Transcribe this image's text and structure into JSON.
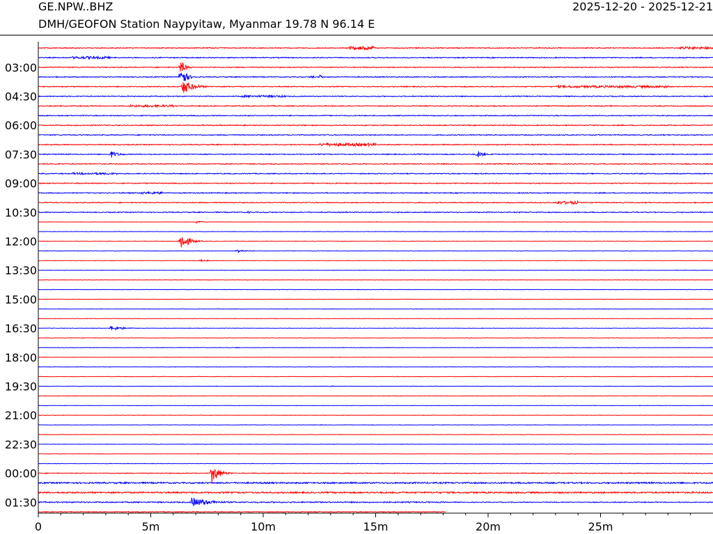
{
  "header": {
    "station_code": "GE.NPW..BHZ",
    "station_desc": "DMH/GEOFON Station Naypyitaw, Myanmar  19.78 N 96.14 E",
    "date_range": "2025-12-20 - 2025-12-21"
  },
  "colors": {
    "trace_a": "#ff0000",
    "trace_b": "#0000ff",
    "axis": "#000000"
  },
  "chart_data": {
    "type": "line",
    "title": "",
    "xlabel": "",
    "ylabel": "",
    "x_range_minutes": [
      0,
      30
    ],
    "x_ticks": [
      {
        "value": 0,
        "label": "0"
      },
      {
        "value": 5,
        "label": "5m"
      },
      {
        "value": 10,
        "label": "10m"
      },
      {
        "value": 15,
        "label": "15m"
      },
      {
        "value": 20,
        "label": "20m"
      },
      {
        "value": 25,
        "label": "25m"
      }
    ],
    "trace_count": 49,
    "trace_interval_minutes": 30,
    "y_tick_labels": [
      {
        "trace": 2,
        "label": "03:00"
      },
      {
        "trace": 5,
        "label": "04:30"
      },
      {
        "trace": 8,
        "label": "06:00"
      },
      {
        "trace": 11,
        "label": "07:30"
      },
      {
        "trace": 14,
        "label": "09:00"
      },
      {
        "trace": 17,
        "label": "10:30"
      },
      {
        "trace": 20,
        "label": "12:00"
      },
      {
        "trace": 23,
        "label": "13:30"
      },
      {
        "trace": 26,
        "label": "15:00"
      },
      {
        "trace": 29,
        "label": "16:30"
      },
      {
        "trace": 32,
        "label": "18:00"
      },
      {
        "trace": 35,
        "label": "19:30"
      },
      {
        "trace": 38,
        "label": "21:00"
      },
      {
        "trace": 41,
        "label": "22:30"
      },
      {
        "trace": 44,
        "label": "00:00"
      },
      {
        "trace": 47,
        "label": "01:30"
      }
    ],
    "last_trace_end_minute": 18.1,
    "events": [
      {
        "trace": 2,
        "minute": 6.3,
        "amplitude": 1.6,
        "duration": 0.5
      },
      {
        "trace": 3,
        "minute": 6.3,
        "amplitude": 2.8,
        "duration": 0.5
      },
      {
        "trace": 3,
        "minute": 12.1,
        "amplitude": 0.4,
        "duration": 0.4
      },
      {
        "trace": 3,
        "minute": 12.5,
        "amplitude": 0.6,
        "duration": 0.3
      },
      {
        "trace": 4,
        "minute": 6.4,
        "amplitude": 1.6,
        "duration": 1.0
      },
      {
        "trace": 11,
        "minute": 3.2,
        "amplitude": 0.8,
        "duration": 0.8
      },
      {
        "trace": 11,
        "minute": 19.5,
        "amplitude": 0.8,
        "duration": 0.6
      },
      {
        "trace": 11,
        "minute": 20.1,
        "amplitude": 0.3,
        "duration": 0.3
      },
      {
        "trace": 17,
        "minute": 9.3,
        "amplitude": 0.3,
        "duration": 0.4
      },
      {
        "trace": 18,
        "minute": 7.0,
        "amplitude": 0.5,
        "duration": 0.4
      },
      {
        "trace": 20,
        "minute": 6.3,
        "amplitude": 2.2,
        "duration": 0.7
      },
      {
        "trace": 21,
        "minute": 8.8,
        "amplitude": 0.4,
        "duration": 0.8
      },
      {
        "trace": 22,
        "minute": 7.2,
        "amplitude": 0.3,
        "duration": 0.6
      },
      {
        "trace": 29,
        "minute": 3.2,
        "amplitude": 0.5,
        "duration": 1.3
      },
      {
        "trace": 31,
        "minute": 8.8,
        "amplitude": 0.2,
        "duration": 0.3
      },
      {
        "trace": 35,
        "minute": 13.0,
        "amplitude": 0.15,
        "duration": 0.4
      },
      {
        "trace": 44,
        "minute": 7.7,
        "amplitude": 2.2,
        "duration": 0.7
      },
      {
        "trace": 47,
        "minute": 6.8,
        "amplitude": 1.0,
        "duration": 1.8
      }
    ],
    "noisy_windows": [
      {
        "trace": 0,
        "from": 13.8,
        "to": 15.0,
        "amplitude": 0.35
      },
      {
        "trace": 0,
        "from": 28.5,
        "to": 30.0,
        "amplitude": 0.25
      },
      {
        "trace": 1,
        "from": 1.5,
        "to": 3.2,
        "amplitude": 0.25
      },
      {
        "trace": 4,
        "from": 23.0,
        "to": 28.0,
        "amplitude": 0.22
      },
      {
        "trace": 5,
        "from": 9.0,
        "to": 11.0,
        "amplitude": 0.2
      },
      {
        "trace": 6,
        "from": 4.0,
        "to": 6.0,
        "amplitude": 0.22
      },
      {
        "trace": 10,
        "from": 12.5,
        "to": 15.0,
        "amplitude": 0.3
      },
      {
        "trace": 13,
        "from": 1.5,
        "to": 3.5,
        "amplitude": 0.2
      },
      {
        "trace": 15,
        "from": 4.5,
        "to": 5.5,
        "amplitude": 0.25
      },
      {
        "trace": 16,
        "from": 23.0,
        "to": 24.0,
        "amplitude": 0.3
      },
      {
        "trace": 45,
        "from": 0.0,
        "to": 30.0,
        "amplitude": 0.15
      },
      {
        "trace": 46,
        "from": 0.0,
        "to": 30.0,
        "amplitude": 0.15
      },
      {
        "trace": 47,
        "from": 0.0,
        "to": 18.1,
        "amplitude": 0.12
      }
    ]
  }
}
